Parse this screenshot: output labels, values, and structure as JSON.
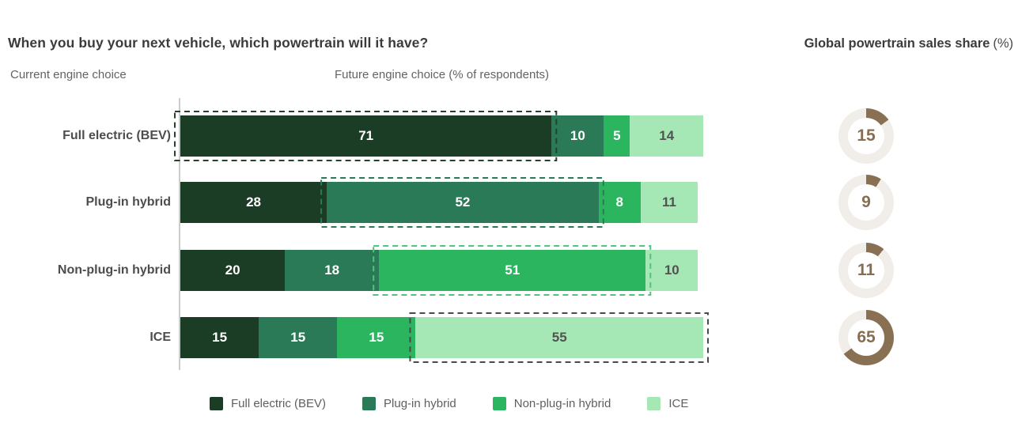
{
  "header": {
    "title": "When you buy your next vehicle, which powertrain will it have?",
    "right_title": "Global powertrain sales share",
    "right_title_suffix": "(%)"
  },
  "subheaders": {
    "left": "Current engine choice",
    "center": "Future engine choice (% of respondents)"
  },
  "legend": [
    "Full electric (BEV)",
    "Plug-in hybrid",
    "Non-plug-in hybrid",
    "ICE"
  ],
  "colors": {
    "series": [
      "#1c3d25",
      "#2a7a58",
      "#2cb55f",
      "#a6e7b6"
    ],
    "highlight_borders": [
      "#24422c",
      "#2a7a58",
      "#4fc47e",
      "#4a4a4a"
    ],
    "bar_label_light": "#ffffff",
    "bar_label_dark": "#525252",
    "donut_arc": "#8a7053",
    "donut_track": "#f1eeea",
    "donut_text": "#876e52",
    "title_text": "#3b3b3b",
    "muted_text": "#636363",
    "row_label_text": "#4d4d4d",
    "axis_line": "#cccccc"
  },
  "chart_data": [
    {
      "type": "bar",
      "subtype": "horizontal-stacked",
      "title": "When you buy your next vehicle, which powertrain will it have?",
      "ylabel": "Current engine choice",
      "xlabel": "Future engine choice (% of respondents)",
      "xlim": [
        0,
        100
      ],
      "grid": false,
      "legend_position": "bottom",
      "categories": [
        "Full electric (BEV)",
        "Plug-in hybrid",
        "Non-plug-in hybrid",
        "ICE"
      ],
      "series": [
        {
          "name": "Full electric (BEV)",
          "values": [
            71,
            28,
            20,
            15
          ]
        },
        {
          "name": "Plug-in hybrid",
          "values": [
            10,
            52,
            18,
            15
          ]
        },
        {
          "name": "Non-plug-in hybrid",
          "values": [
            5,
            8,
            51,
            15
          ]
        },
        {
          "name": "ICE",
          "values": [
            14,
            11,
            10,
            55
          ]
        }
      ],
      "annotation": "dashed box highlights the segment where future choice equals current choice"
    },
    {
      "type": "pie",
      "subtype": "donut-set",
      "title": "Global powertrain sales share (%)",
      "categories": [
        "Full electric (BEV)",
        "Plug-in hybrid",
        "Non-plug-in hybrid",
        "ICE"
      ],
      "values": [
        15,
        9,
        11,
        65
      ]
    }
  ]
}
